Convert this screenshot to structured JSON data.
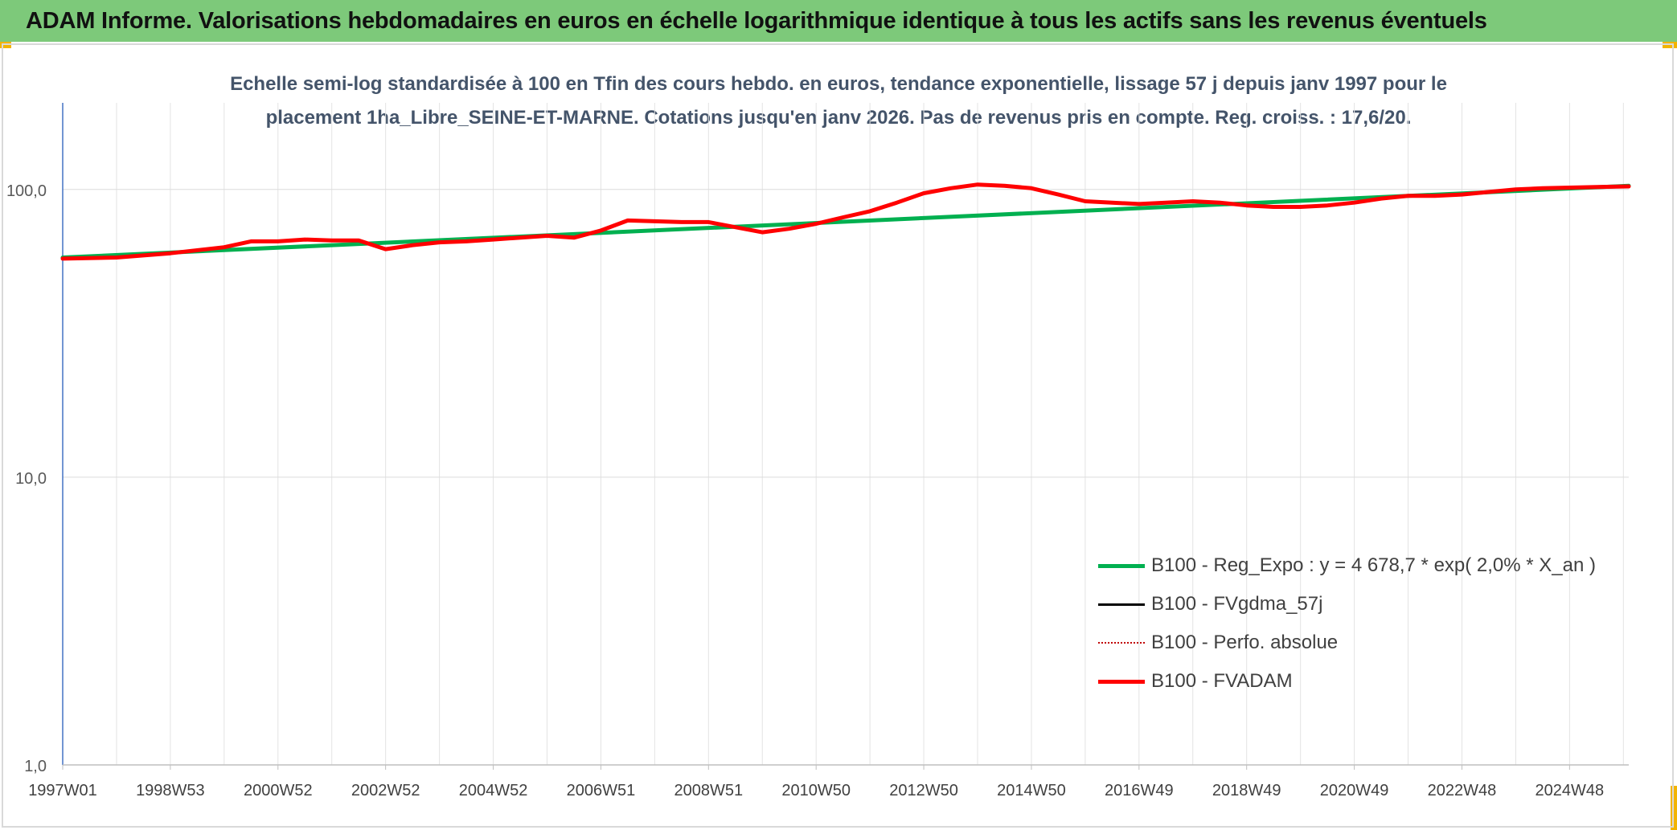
{
  "banner": {
    "title": "ADAM Informe. Valorisations hebdomadaires en euros en échelle logarithmique identique à tous les actifs sans les revenus éventuels"
  },
  "chart_data": {
    "type": "line",
    "title_line1": "Echelle semi-log standardisée à 100 en Tfin des cours hebdo. en euros, tendance exponentielle, lissage 57 j depuis janv 1997 pour le",
    "title_line2": "placement 1ha_Libre_SEINE-ET-MARNE. Cotations jusqu'en janv 2026. Pas de revenus pris en compte. Reg. croiss. : 17,6/20.",
    "y_scale": "log",
    "ylim": [
      1,
      200
    ],
    "y_ticks": [
      {
        "value": 1,
        "label": "1,0"
      },
      {
        "value": 10,
        "label": "10,0"
      },
      {
        "value": 100,
        "label": "100,0"
      }
    ],
    "x_range": [
      1997.0,
      2026.1
    ],
    "x_ticks": [
      {
        "pos": 1997.0,
        "label": "1997W01"
      },
      {
        "pos": 1999.0,
        "label": "1998W53"
      },
      {
        "pos": 2001.0,
        "label": "2000W52"
      },
      {
        "pos": 2003.0,
        "label": "2002W52"
      },
      {
        "pos": 2005.0,
        "label": "2004W52"
      },
      {
        "pos": 2007.0,
        "label": "2006W51"
      },
      {
        "pos": 2009.0,
        "label": "2008W51"
      },
      {
        "pos": 2011.0,
        "label": "2010W50"
      },
      {
        "pos": 2013.0,
        "label": "2012W50"
      },
      {
        "pos": 2015.0,
        "label": "2014W50"
      },
      {
        "pos": 2017.0,
        "label": "2016W49"
      },
      {
        "pos": 2019.0,
        "label": "2018W49"
      },
      {
        "pos": 2021.0,
        "label": "2020W49"
      },
      {
        "pos": 2023.0,
        "label": "2022W48"
      },
      {
        "pos": 2025.0,
        "label": "2024W48"
      }
    ],
    "grid": "vertical-yearly-and-horizontal-decades",
    "legend_position": "bottom-right",
    "series": [
      {
        "name": "B100 - Reg_Expo : y = 4 678,7 * exp( 2,0% *  X_an )",
        "color": "#00b050",
        "style": "solid",
        "width": 5,
        "x": [
          1997.0,
          2026.1
        ],
        "y": [
          58.0,
          103.0
        ]
      },
      {
        "name": "B100 - FVgdma_57j",
        "color": "#000000",
        "style": "solid",
        "width": 3,
        "x": [],
        "y": []
      },
      {
        "name": "B100 - Perfo. absolue",
        "color": "#c00000",
        "style": "dotted",
        "width": 2,
        "x": [],
        "y": []
      },
      {
        "name": "B100 - FVADAM",
        "color": "#ff0000",
        "style": "solid",
        "width": 5,
        "x": [
          1997.0,
          1998.0,
          1999.0,
          2000.0,
          2000.5,
          2001.0,
          2001.5,
          2002.0,
          2002.5,
          2003.0,
          2003.5,
          2004.0,
          2004.5,
          2005.0,
          2006.0,
          2006.5,
          2007.0,
          2007.5,
          2008.0,
          2008.5,
          2009.0,
          2010.0,
          2010.5,
          2011.0,
          2011.5,
          2012.0,
          2012.5,
          2013.0,
          2013.5,
          2014.0,
          2014.5,
          2015.0,
          2015.5,
          2016.0,
          2016.5,
          2017.0,
          2017.5,
          2018.0,
          2018.5,
          2019.0,
          2019.5,
          2020.0,
          2020.5,
          2021.0,
          2021.5,
          2022.0,
          2022.5,
          2023.0,
          2023.5,
          2024.0,
          2024.5,
          2025.0,
          2025.5,
          2026.1
        ],
        "y": [
          57.5,
          58.0,
          60.0,
          63.0,
          66.0,
          66.0,
          67.0,
          66.5,
          66.5,
          62.0,
          64.0,
          65.5,
          66.0,
          67.0,
          69.0,
          68.0,
          72.0,
          78.0,
          77.5,
          77.0,
          77.0,
          71.0,
          73.0,
          76.0,
          80.0,
          84.0,
          90.0,
          97.0,
          101.0,
          104.0,
          103.0,
          101.0,
          96.0,
          91.0,
          90.0,
          89.0,
          90.0,
          91.0,
          90.0,
          88.0,
          87.0,
          87.0,
          88.0,
          90.0,
          93.0,
          95.0,
          95.0,
          96.0,
          98.0,
          100.0,
          101.0,
          101.5,
          102.0,
          102.5
        ]
      }
    ]
  }
}
